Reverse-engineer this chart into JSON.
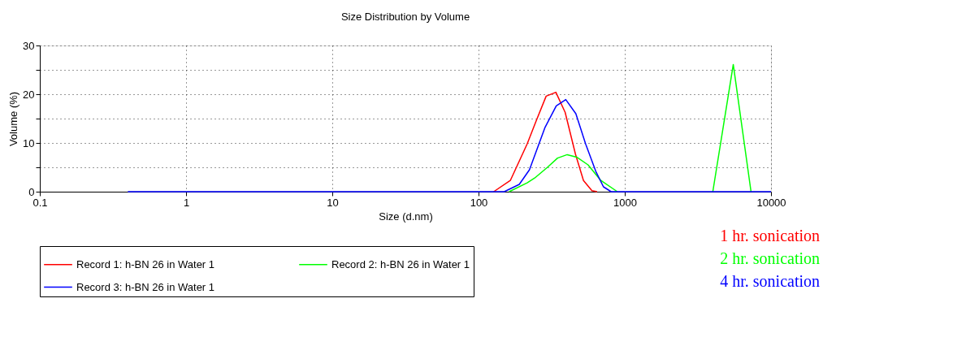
{
  "chart_data": {
    "type": "line",
    "title": "Size Distribution by Volume",
    "xlabel": "Size (d.nm)",
    "ylabel": "Volume (%)",
    "log": "x",
    "xlim": [
      0.1,
      10000
    ],
    "xticks": [
      0.1,
      1,
      10,
      100,
      1000,
      10000
    ],
    "ylim": [
      0,
      30
    ],
    "yticks": [
      0,
      {
        "value": 5,
        "label": null
      },
      10,
      {
        "value": 15,
        "label": null
      },
      20,
      {
        "value": 25,
        "label": null
      },
      30
    ],
    "grid": true,
    "legend": "bottom",
    "line_style": "solid",
    "marker": "none",
    "annotations": [
      "1 hr. sonication",
      "2 hr. sonication",
      "4 hr. sonication"
    ],
    "series": [
      {
        "name": "Record 1: h-BN 26 in Water 1",
        "color": "#ff0000",
        "x": [
          127,
          165,
          215,
          247,
          290,
          338,
          391,
          460,
          522,
          596,
          646
        ],
        "values": [
          0,
          2.3,
          9.8,
          14.4,
          19.6,
          20.4,
          16.3,
          7.7,
          2.3,
          0.2,
          0
        ]
      },
      {
        "name": "Record 2: h-BN 26 in Water 1",
        "color": "#00ff00",
        "x": [
          162,
          215,
          242,
          296,
          347,
          404,
          469,
          561,
          686,
          890,
          2000,
          4000,
          5520,
          7300
        ],
        "values": [
          0,
          1.8,
          2.8,
          5.0,
          6.9,
          7.6,
          7.1,
          5.5,
          2.3,
          0,
          null,
          0,
          26.1,
          0
        ]
      },
      {
        "name": "Record 3: h-BN 26 in Water 1",
        "color": "#0000ff",
        "x": [
          0.4,
          150,
          190,
          223,
          284,
          340,
          395,
          463,
          540,
          633,
          715,
          806,
          10000
        ],
        "values": [
          0,
          0,
          1.5,
          4.5,
          13.1,
          17.6,
          18.9,
          16.0,
          9.8,
          4.2,
          1.0,
          0,
          0
        ]
      }
    ]
  }
}
